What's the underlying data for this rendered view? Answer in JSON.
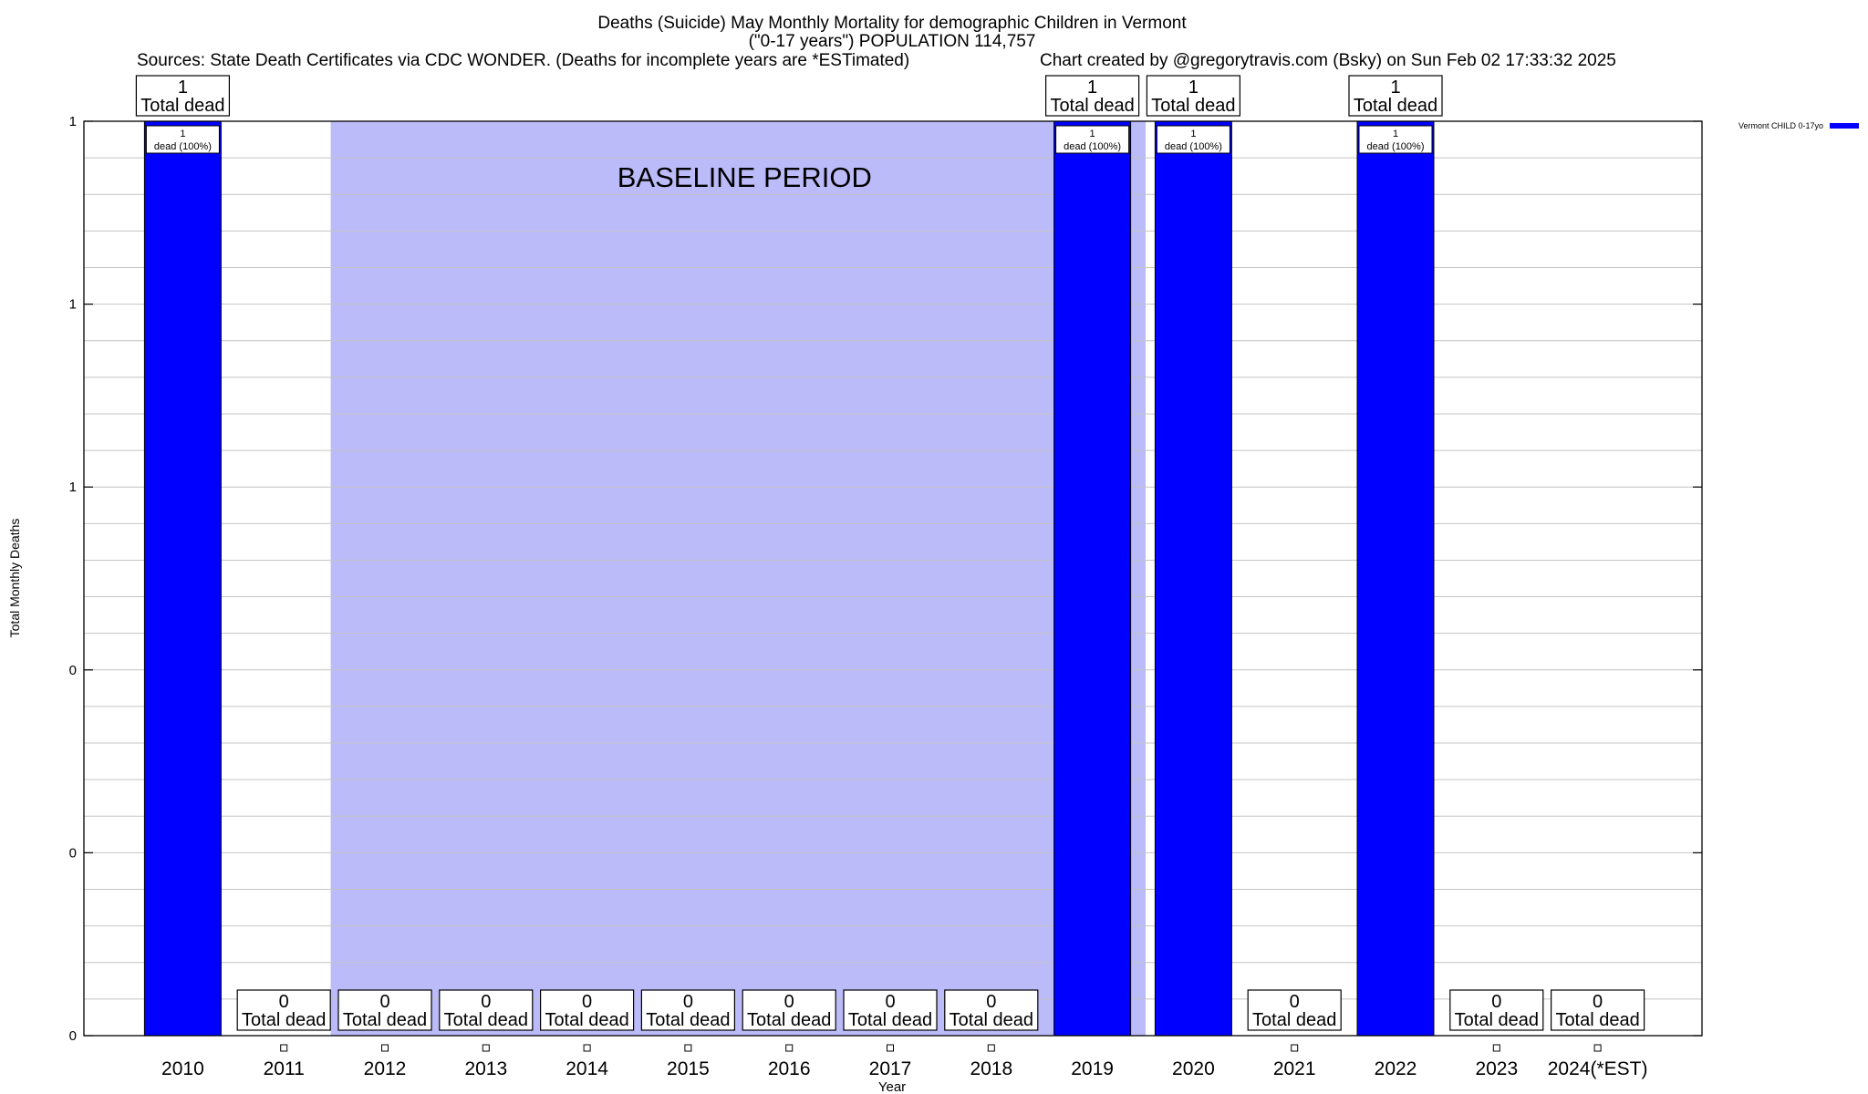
{
  "chart_data": {
    "type": "bar",
    "title_line1": "Deaths (Suicide) May Monthly Mortality for demographic Children in Vermont",
    "title_line2": "(\"0-17 years\") POPULATION 114,757",
    "sources": "Sources: State Death Certificates via CDC WONDER. (Deaths for incomplete years are *ESTimated)",
    "credit": "Chart created by @gregorytravis.com (Bsky) on Sun Feb 02 17:33:32 2025",
    "xlabel": "Year",
    "ylabel": "Total Monthly Deaths",
    "ylim": [
      0,
      1
    ],
    "yticks": [
      {
        "value": 0,
        "label": "0"
      },
      {
        "value": 0.2,
        "label": "0"
      },
      {
        "value": 0.4,
        "label": "0"
      },
      {
        "value": 0.6,
        "label": "1"
      },
      {
        "value": 0.8,
        "label": "1"
      },
      {
        "value": 1.0,
        "label": "1"
      }
    ],
    "minor_grid_step": 0.04,
    "grid": true,
    "legend_position": "top-right",
    "series": [
      {
        "name": "Vermont CHILD 0-17yo",
        "color": "#0000ff"
      }
    ],
    "baseline": {
      "label": "BASELINE PERIOD",
      "from": "2012",
      "to": "2019",
      "color": "#bbbbfa"
    },
    "total_label_word": "Total dead",
    "bar_label_word": "dead (100%)",
    "categories": [
      "2010",
      "2011",
      "2012",
      "2013",
      "2014",
      "2015",
      "2016",
      "2017",
      "2018",
      "2019",
      "2020",
      "2021",
      "2022",
      "2023",
      "2024(*EST)"
    ],
    "values": [
      1,
      0,
      0,
      0,
      0,
      0,
      0,
      0,
      0,
      1,
      1,
      0,
      1,
      0,
      0
    ]
  }
}
